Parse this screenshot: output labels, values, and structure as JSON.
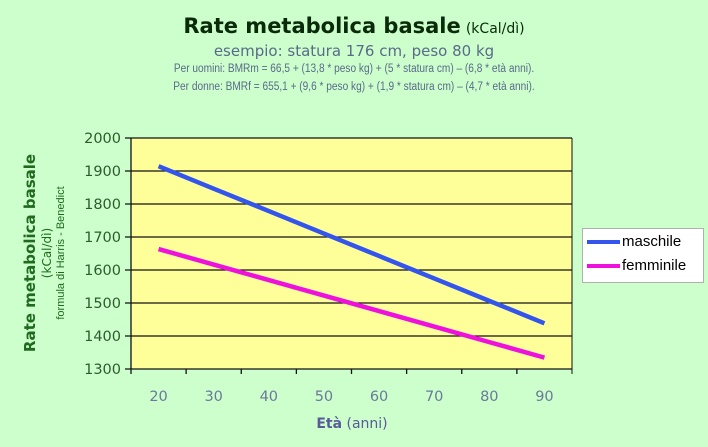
{
  "chart_data": {
    "type": "line",
    "title": "Rate metabolica basale",
    "title_unit": "(kCal/dì)",
    "subtitle": "esempio: statura 176 cm, peso 80 kg",
    "formula_men": "Per uomini: BMRm = 66,5 + (13,8 * peso kg) + (5 * statura cm) – (6,8 * età anni).",
    "formula_women": "Per donne: BMRf = 655,1 + (9,6 * peso kg) + (1,9 * statura cm) – (4,7 * età anni).",
    "ylabel": "Rate metabolica basale",
    "ylabel_unit": "(kCal/dì)",
    "ylabel_note": "formula di Harris - Benedict",
    "xlabel": "Età",
    "xlabel_unit": "(anni)",
    "categories": [
      "20",
      "30",
      "40",
      "50",
      "60",
      "70",
      "80",
      "90"
    ],
    "x": [
      20,
      30,
      40,
      50,
      60,
      70,
      80,
      90
    ],
    "ylim": [
      1300,
      2000
    ],
    "yticks": [
      1300,
      1400,
      1500,
      1600,
      1700,
      1800,
      1900,
      2000
    ],
    "grid": true,
    "legend_position": "right",
    "series": [
      {
        "name": "maschile",
        "color": "#3355ee",
        "values": [
          1914.5,
          1846.5,
          1778.5,
          1710.5,
          1642.5,
          1574.5,
          1506.5,
          1438.5
        ]
      },
      {
        "name": "femminile",
        "color": "#ee11dd",
        "values": [
          1663.5,
          1616.5,
          1569.5,
          1522.5,
          1475.5,
          1428.5,
          1381.5,
          1334.5
        ]
      }
    ],
    "plot_background": "#ffff99",
    "page_background": "#ccffcc"
  }
}
